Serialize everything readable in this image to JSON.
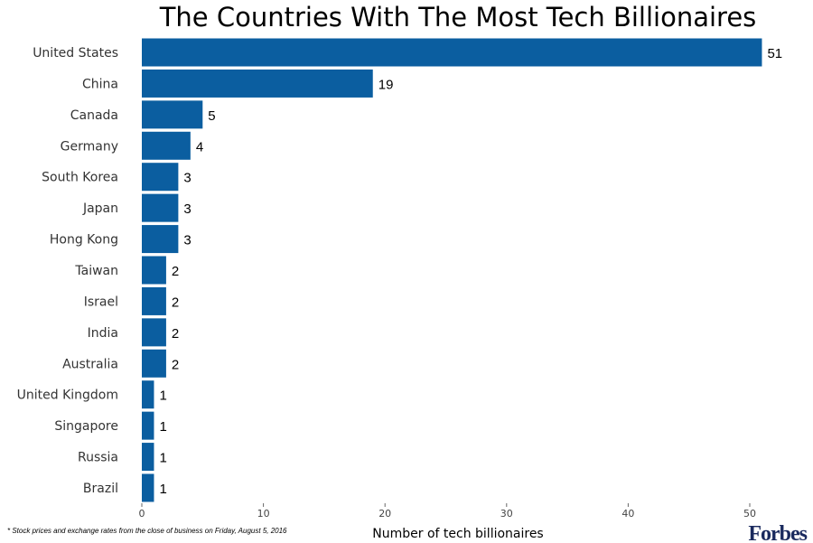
{
  "chart_data": {
    "type": "bar",
    "orientation": "horizontal",
    "title": "The Countries With The Most Tech Billionaires",
    "xlabel": "Number of tech billionaires",
    "ylabel": "",
    "categories": [
      "United States",
      "China",
      "Canada",
      "Germany",
      "South Korea",
      "Japan",
      "Hong Kong",
      "Taiwan",
      "Israel",
      "India",
      "Australia",
      "United Kingdom",
      "Singapore",
      "Russia",
      "Brazil"
    ],
    "values": [
      51,
      19,
      5,
      4,
      3,
      3,
      3,
      2,
      2,
      2,
      2,
      1,
      1,
      1,
      1
    ],
    "xlim": [
      0,
      51
    ],
    "xticks": [
      0,
      10,
      20,
      30,
      40,
      50
    ],
    "grid": false,
    "data_labels": true,
    "bar_color": "#0b5ea0"
  },
  "footnote": "* Stock prices and exchange rates from the close of business on Friday, August 5, 2016",
  "logo": "Forbes"
}
